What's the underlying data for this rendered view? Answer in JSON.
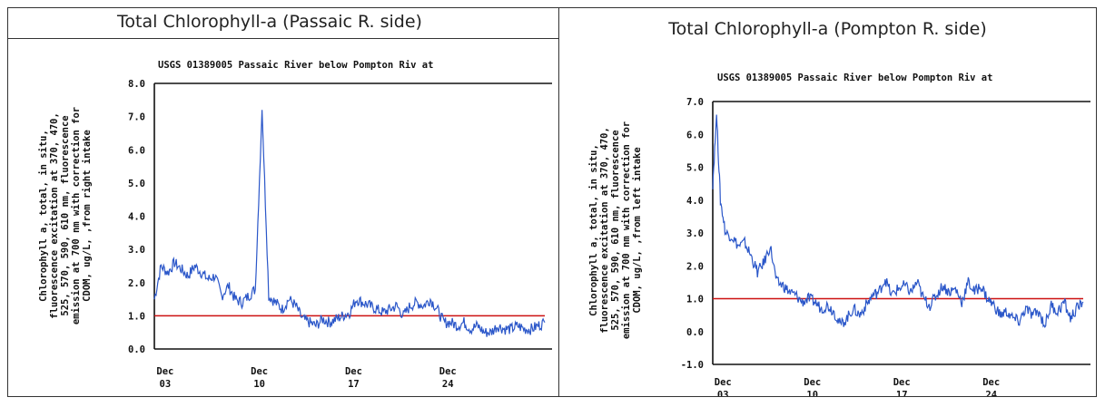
{
  "chart_data": [
    {
      "type": "line",
      "title": "Total Chlorophyll-a (Passaic R. side)",
      "subtitle": "USGS 01389005 Passaic River below Pompton Riv at",
      "ylabel_lines": [
        "Chlorophyll a, total, in situ,",
        "fluorescence excitation at 370, 470,",
        "525, 570, 590, 610 nm, fluorescence",
        "emission at 700 nm with correction for",
        "CDOM, ug/L, ,from right intake"
      ],
      "ylim": [
        0,
        8
      ],
      "yticks": [
        "8.0",
        "7.0",
        "6.0",
        "5.0",
        "4.0",
        "3.0",
        "2.0",
        "1.0",
        "0.0"
      ],
      "x_tick_labels": [
        [
          "Dec",
          "03"
        ],
        [
          "Dec",
          "10"
        ],
        [
          "Dec",
          "17"
        ],
        [
          "Dec",
          "24"
        ]
      ],
      "reference_line": 1.0,
      "series_color": "#2b57c9",
      "reference_color": "#cc1111",
      "x_days": [
        0,
        0.5,
        1,
        1.5,
        2,
        2.5,
        3,
        3.5,
        4,
        4.5,
        5,
        5.5,
        6,
        6.5,
        7,
        7.5,
        8,
        8.5,
        9,
        9.5,
        10,
        10.5,
        11,
        11.5,
        12,
        12.5,
        13,
        13.5,
        14,
        14.5,
        15,
        15.5,
        16,
        16.5,
        17,
        17.5,
        18,
        18.5,
        19,
        19.5,
        20,
        20.5,
        21,
        21.5,
        22,
        22.5,
        23,
        23.5,
        24,
        24.5,
        25,
        25.5,
        26,
        26.5,
        27,
        27.5,
        28,
        28.5,
        29
      ],
      "values": [
        1.5,
        2.5,
        2.3,
        2.6,
        2.4,
        2.2,
        2.5,
        2.3,
        2.1,
        2.2,
        1.6,
        1.9,
        1.5,
        1.4,
        1.6,
        1.8,
        7.2,
        1.6,
        1.4,
        1.2,
        1.5,
        1.3,
        0.9,
        0.8,
        0.7,
        0.9,
        0.8,
        0.9,
        1.0,
        1.1,
        1.5,
        1.4,
        1.3,
        1.2,
        1.1,
        1.2,
        1.3,
        1.0,
        1.3,
        1.4,
        1.3,
        1.5,
        1.2,
        0.8,
        0.8,
        0.7,
        0.8,
        0.6,
        0.7,
        0.5,
        0.5,
        0.7,
        0.6,
        0.6,
        0.7,
        0.6,
        0.6,
        0.7,
        0.8
      ]
    },
    {
      "type": "line",
      "title": "Total Chlorophyll-a (Pompton R. side)",
      "subtitle": "USGS 01389005 Passaic River below Pompton Riv at",
      "ylabel_lines": [
        "Chlorophyll a, total, in situ,",
        "fluorescence excitation at 370, 470,",
        "525, 570, 590, 610 nm, fluorescence",
        "emission at 700 nm with correction for",
        "CDOM, ug/L, ,from left intake"
      ],
      "ylim": [
        -1,
        7
      ],
      "yticks": [
        "7.0",
        "6.0",
        "5.0",
        "4.0",
        "3.0",
        "2.0",
        "1.0",
        "0.0",
        "-1.0"
      ],
      "x_tick_labels": [
        [
          "Dec",
          "03"
        ],
        [
          "Dec",
          "10"
        ],
        [
          "Dec",
          "17"
        ],
        [
          "Dec",
          "24"
        ]
      ],
      "reference_line": 1.0,
      "series_color": "#2b57c9",
      "reference_color": "#cc1111",
      "x_days": [
        0,
        0.3,
        0.6,
        1,
        1.5,
        2,
        2.5,
        3,
        3.5,
        4,
        4.5,
        5,
        5.5,
        6,
        6.5,
        7,
        7.5,
        8,
        8.5,
        9,
        9.5,
        10,
        10.5,
        11,
        11.5,
        12,
        12.5,
        13,
        13.5,
        14,
        14.5,
        15,
        15.5,
        16,
        16.5,
        17,
        17.5,
        18,
        18.5,
        19,
        19.5,
        20,
        20.5,
        21,
        21.5,
        22,
        22.5,
        23,
        23.5,
        24,
        24.5,
        25,
        25.5,
        26,
        26.5,
        27,
        27.5,
        28,
        28.5,
        29
      ],
      "values": [
        4.5,
        6.6,
        4.0,
        3.0,
        2.9,
        2.6,
        2.7,
        2.3,
        1.8,
        2.1,
        2.6,
        1.5,
        1.4,
        1.2,
        1.1,
        0.9,
        1.0,
        0.9,
        0.7,
        0.8,
        0.6,
        0.2,
        0.4,
        0.7,
        0.5,
        0.8,
        1.1,
        1.2,
        1.6,
        1.1,
        1.3,
        1.4,
        1.2,
        1.5,
        1.0,
        0.8,
        1.1,
        1.4,
        1.2,
        1.3,
        0.9,
        1.5,
        1.2,
        1.4,
        1.0,
        0.8,
        0.5,
        0.6,
        0.4,
        0.3,
        0.7,
        0.5,
        0.6,
        0.2,
        0.8,
        0.6,
        0.9,
        0.4,
        0.7,
        0.9
      ]
    }
  ]
}
